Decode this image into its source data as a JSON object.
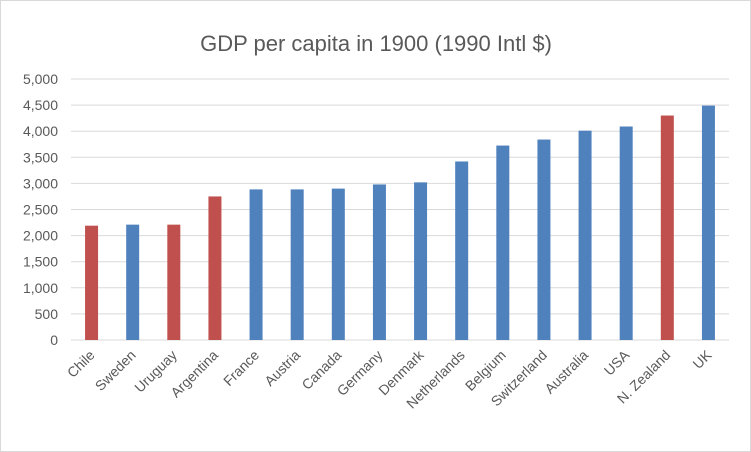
{
  "chart_data": {
    "type": "bar",
    "title": "GDP per capita in 1900 (1990 Intl $)",
    "xlabel": "",
    "ylabel": "",
    "ylim": [
      0,
      5000
    ],
    "yticks": [
      "0",
      "500",
      "1,000",
      "1,500",
      "2,000",
      "2,500",
      "3,000",
      "3,500",
      "4,000",
      "4,500",
      "5,000"
    ],
    "grid": true,
    "categories": [
      "Chile",
      "Sweden",
      "Uruguay",
      "Argentina",
      "France",
      "Austria",
      "Canada",
      "Germany",
      "Denmark",
      "Netherlands",
      "Belgium",
      "Switzerland",
      "Australia",
      "USA",
      "N. Zealand",
      "UK"
    ],
    "values": [
      2190,
      2210,
      2210,
      2750,
      2885,
      2885,
      2900,
      2980,
      3020,
      3420,
      3725,
      3840,
      4010,
      4090,
      4300,
      4490
    ],
    "bar_colors": [
      "#c0504d",
      "#4f81bd",
      "#c0504d",
      "#c0504d",
      "#4f81bd",
      "#4f81bd",
      "#4f81bd",
      "#4f81bd",
      "#4f81bd",
      "#4f81bd",
      "#4f81bd",
      "#4f81bd",
      "#4f81bd",
      "#4f81bd",
      "#c0504d",
      "#4f81bd"
    ]
  }
}
